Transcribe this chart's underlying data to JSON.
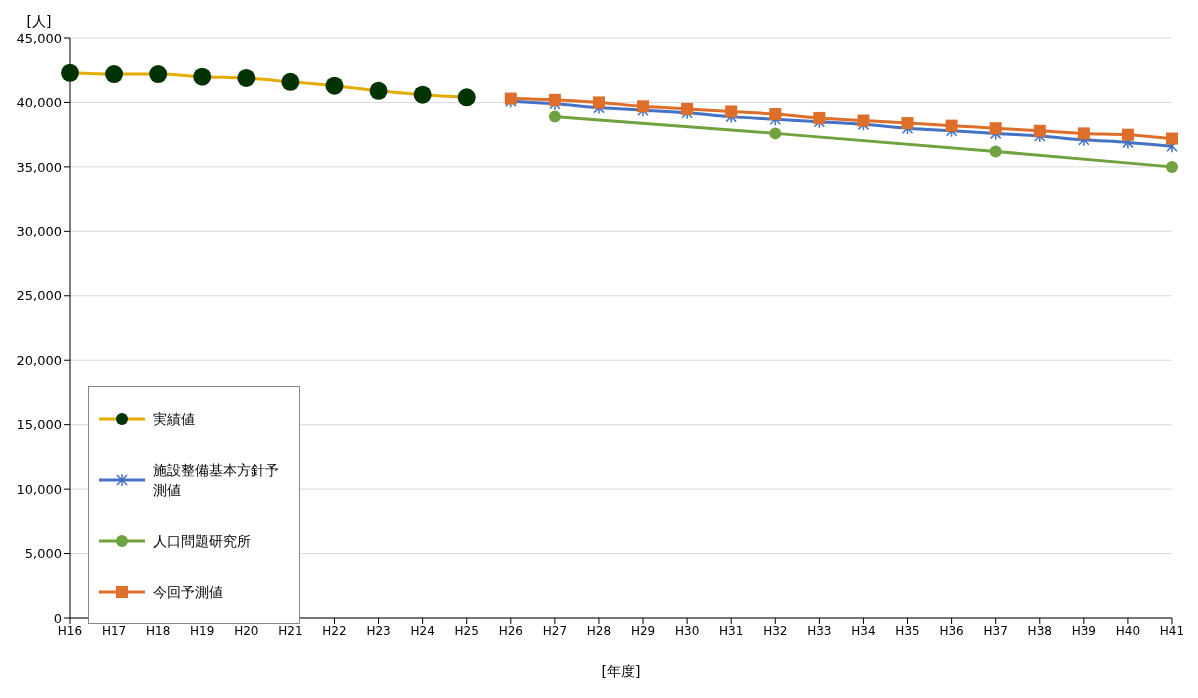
{
  "chart_data": {
    "type": "line",
    "xlabel": "[年度]",
    "ylabel": "[人]",
    "categories": [
      "H16",
      "H17",
      "H18",
      "H19",
      "H20",
      "H21",
      "H22",
      "H23",
      "H24",
      "H25",
      "H26",
      "H27",
      "H28",
      "H29",
      "H30",
      "H31",
      "H32",
      "H33",
      "H34",
      "H35",
      "H36",
      "H37",
      "H38",
      "H39",
      "H40",
      "H41"
    ],
    "series": [
      {
        "name": "実績値",
        "color": "#e5ac00",
        "marker": "circle",
        "colors": [
          "#003300",
          "#003300",
          "#003300",
          "#003300",
          "#003300",
          "#003300",
          "#003300",
          "#003300",
          "#003300",
          "#003300",
          null,
          null,
          null,
          null,
          null,
          null,
          null,
          null,
          null,
          null,
          null,
          null,
          null,
          null,
          null,
          null
        ],
        "values": [
          42300,
          42200,
          42200,
          42000,
          41900,
          41600,
          41300,
          40900,
          40600,
          40400,
          null,
          null,
          null,
          null,
          null,
          null,
          null,
          null,
          null,
          null,
          null,
          null,
          null,
          null,
          null,
          null
        ]
      },
      {
        "name": "施設整備基本方針予測値",
        "color": "#4472c4",
        "marker": "cross",
        "values": [
          null,
          null,
          null,
          null,
          null,
          null,
          null,
          null,
          null,
          null,
          40100,
          39900,
          39600,
          39400,
          39200,
          38900,
          38700,
          38500,
          38300,
          38000,
          37800,
          37600,
          37400,
          37100,
          36900,
          36600
        ]
      },
      {
        "name": "人口問題研究所",
        "color": "#70a23f",
        "marker": "circle",
        "values": [
          null,
          null,
          null,
          null,
          null,
          null,
          null,
          null,
          null,
          null,
          null,
          38900,
          null,
          null,
          null,
          null,
          37600,
          null,
          null,
          null,
          null,
          36200,
          null,
          null,
          null,
          35000
        ]
      },
      {
        "name": "今回予測値",
        "color": "#dd6f2a",
        "marker": "square",
        "values": [
          null,
          null,
          null,
          null,
          null,
          null,
          null,
          null,
          null,
          null,
          40300,
          40200,
          40000,
          39700,
          39500,
          39300,
          39100,
          38800,
          38600,
          38400,
          38200,
          38000,
          37800,
          37600,
          37500,
          37200
        ]
      }
    ],
    "ylim": [
      0,
      45000
    ],
    "yticks": [
      0,
      {
        "value": 5000,
        "label": "5,000"
      },
      {
        "value": 10000,
        "label": "10,000"
      },
      {
        "value": 15000,
        "label": "15,000"
      },
      {
        "value": 20000,
        "label": "20,000"
      },
      {
        "value": 25000,
        "label": "25,000"
      },
      {
        "value": 30000,
        "label": "30,000"
      },
      {
        "value": 35000,
        "label": "35,000"
      },
      {
        "value": 40000,
        "label": "40,000"
      },
      {
        "value": 45000,
        "label": "45,000"
      }
    ],
    "grid": "y",
    "legend": "bottom left"
  }
}
